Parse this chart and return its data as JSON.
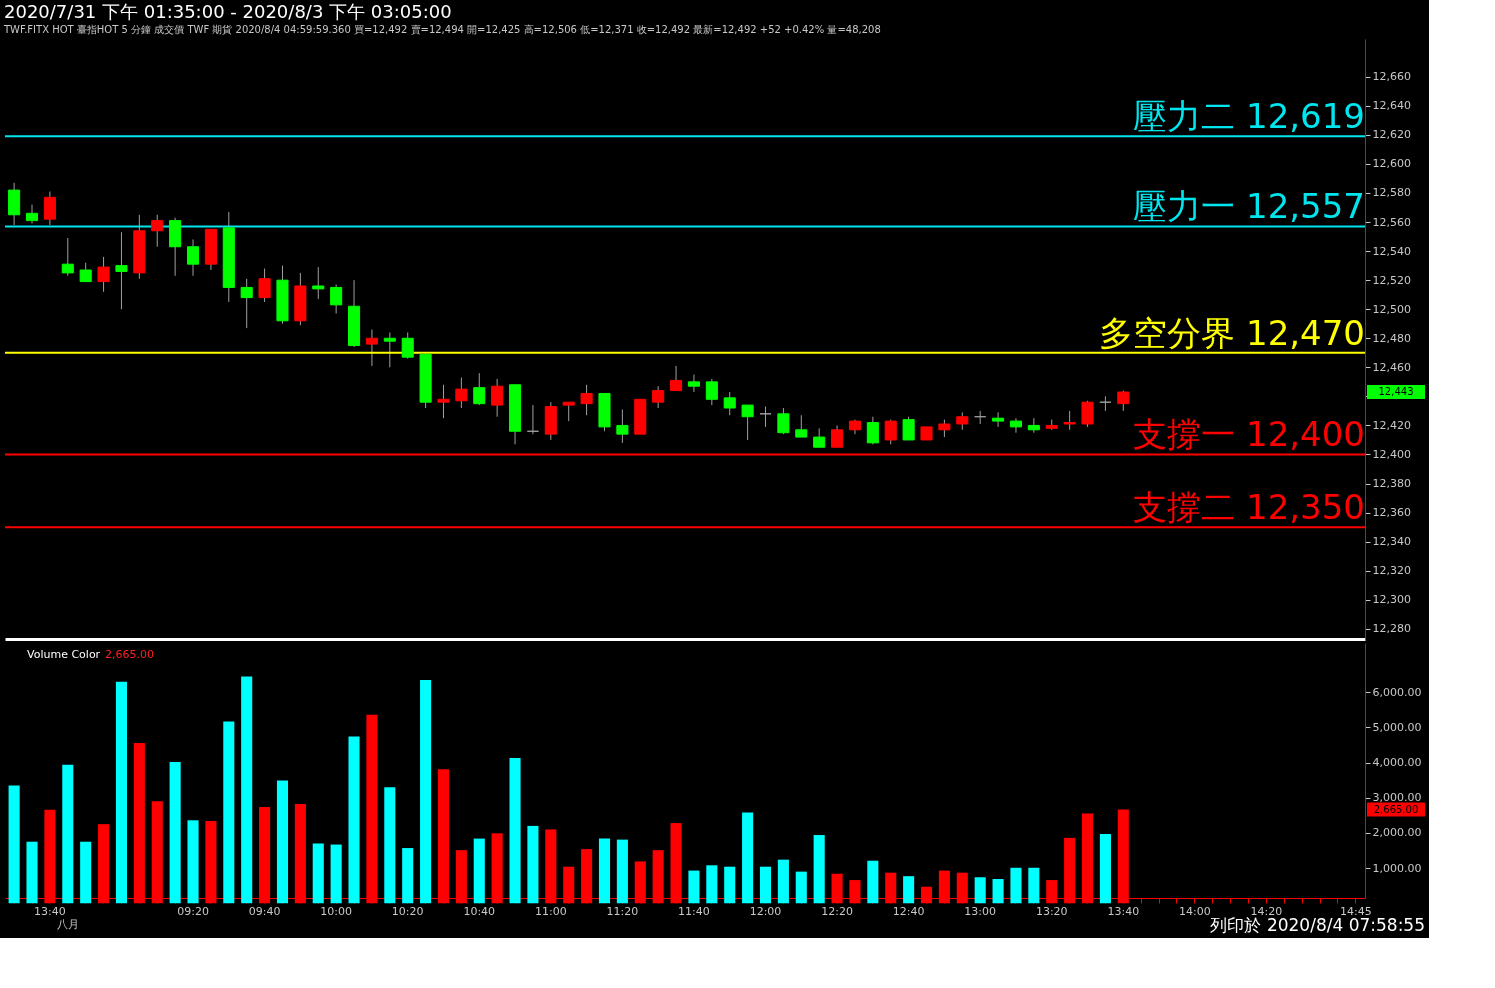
{
  "chart_data": [
    {
      "type": "candlestick",
      "title": "2020/7/31 下午 01:35:00 - 2020/8/3 下午 03:05:00",
      "subtitle": "TWF.FITX HOT  臺指HOT 5 分鐘  成交價 TWF 期貨  2020/8/4 04:59:59.360  買=12,492  賣=12,494  開=12,425  高=12,506  低=12,371  收=12,492  最新=12,492  +52  +0.42%  量=48,208",
      "categories": [
        null,
        null,
        null,
        null,
        null,
        null,
        null,
        null,
        null,
        null,
        null,
        null,
        null,
        null,
        null,
        null,
        null,
        null,
        null,
        null,
        null,
        null,
        null,
        null,
        null,
        null,
        null,
        null,
        null,
        null,
        null,
        null,
        null,
        null,
        null,
        null,
        null,
        null,
        null,
        null,
        null,
        null,
        null,
        null,
        null,
        null,
        null,
        null,
        null,
        null,
        null,
        null,
        null,
        null,
        null,
        null,
        null,
        null,
        null,
        null,
        null,
        null,
        null,
        null,
        null,
        null,
        null,
        null,
        null,
        null,
        null,
        null,
        null,
        null,
        null,
        null
      ],
      "ohlc": [
        [
          12582,
          12587,
          12558,
          12565
        ],
        [
          12566,
          12572,
          12559,
          12561
        ],
        [
          12562,
          12581,
          12558,
          12577
        ],
        [
          12531,
          12549,
          12523,
          12525
        ],
        [
          12527,
          12532,
          12519,
          12519
        ],
        [
          12519,
          12536,
          12512,
          12529
        ],
        [
          12530,
          12553,
          12500,
          12526
        ],
        [
          12525,
          12565,
          12521,
          12554
        ],
        [
          12554,
          12565,
          12543,
          12561
        ],
        [
          12561,
          12563,
          12523,
          12543
        ],
        [
          12543,
          12548,
          12523,
          12531
        ],
        [
          12531,
          12555,
          12527,
          12555
        ],
        [
          12556,
          12567,
          12505,
          12515
        ],
        [
          12515,
          12521,
          12487,
          12508
        ],
        [
          12508,
          12528,
          12505,
          12521
        ],
        [
          12520,
          12530,
          12490,
          12492
        ],
        [
          12492,
          12525,
          12489,
          12516
        ],
        [
          12516,
          12529,
          12507,
          12514
        ],
        [
          12515,
          12517,
          12497,
          12503
        ],
        [
          12502,
          12520,
          12474,
          12475
        ],
        [
          12476,
          12486,
          12461,
          12480
        ],
        [
          12480,
          12484,
          12460,
          12478
        ],
        [
          12480,
          12484,
          12466,
          12467
        ],
        [
          12469,
          12470,
          12432,
          12436
        ],
        [
          12436,
          12448,
          12425,
          12438
        ],
        [
          12437,
          12453,
          12432,
          12445
        ],
        [
          12446,
          12456,
          12434,
          12435
        ],
        [
          12434,
          12452,
          12426,
          12447
        ],
        [
          12448,
          12448,
          12407,
          12416
        ],
        [
          12416,
          12434,
          12414,
          12416
        ],
        [
          12414,
          12436,
          12410,
          12433
        ],
        [
          12434,
          12436,
          12423,
          12436
        ],
        [
          12435,
          12448,
          12427,
          12442
        ],
        [
          12442,
          12442,
          12416,
          12419
        ],
        [
          12420,
          12431,
          12408,
          12414
        ],
        [
          12414,
          12438,
          12414,
          12438
        ],
        [
          12436,
          12447,
          12432,
          12444
        ],
        [
          12444,
          12461,
          12444,
          12451
        ],
        [
          12450,
          12455,
          12443,
          12447
        ],
        [
          12450,
          12452,
          12434,
          12438
        ],
        [
          12439,
          12443,
          12427,
          12432
        ],
        [
          12434,
          12434,
          12410,
          12426
        ],
        [
          12428,
          12433,
          12419,
          12428
        ],
        [
          12428,
          12432,
          12414,
          12415
        ],
        [
          12417,
          12427,
          12412,
          12412
        ],
        [
          12412,
          12418,
          12405,
          12405
        ],
        [
          12405,
          12420,
          12405,
          12417
        ],
        [
          12417,
          12424,
          12414,
          12423
        ],
        [
          12422,
          12426,
          12407,
          12408
        ],
        [
          12410,
          12424,
          12407,
          12423
        ],
        [
          12424,
          12426,
          12410,
          12410
        ],
        [
          12410,
          12419,
          12410,
          12419
        ],
        [
          12417,
          12424,
          12412,
          12421
        ],
        [
          12421,
          12429,
          12417,
          12426
        ],
        [
          12426,
          12430,
          12421,
          12426
        ],
        [
          12425,
          12429,
          12419,
          12423
        ],
        [
          12423,
          12425,
          12415,
          12419
        ],
        [
          12420,
          12425,
          12415,
          12417
        ],
        [
          12418,
          12424,
          12417,
          12420
        ],
        [
          12421,
          12430,
          12417,
          12422
        ],
        [
          12421,
          12437,
          12419,
          12436
        ],
        [
          12436,
          12440,
          12430,
          12436
        ],
        [
          12435,
          12444,
          12430,
          12443
        ],
        null,
        null,
        null,
        null,
        null,
        null,
        null,
        null,
        null,
        null,
        null,
        null,
        null
      ],
      "colors": [
        "#00ff00",
        "#00ff00",
        "#ff0000",
        "#00ff00",
        "#00ff00",
        "#ff0000",
        "#00ff00",
        "#ff0000",
        "#ff0000",
        "#00ff00",
        "#00ff00",
        "#ff0000",
        "#00ff00",
        "#00ff00",
        "#ff0000",
        "#00ff00",
        "#ff0000",
        "#00ff00",
        "#00ff00",
        "#00ff00",
        "#ff0000",
        "#00ff00",
        "#00ff00",
        "#00ff00",
        "#ff0000",
        "#ff0000",
        "#00ff00",
        "#ff0000",
        "#00ff00",
        "#a0a0a0",
        "#ff0000",
        "#ff0000",
        "#ff0000",
        "#00ff00",
        "#00ff00",
        "#ff0000",
        "#ff0000",
        "#ff0000",
        "#00ff00",
        "#00ff00",
        "#00ff00",
        "#00ff00",
        "#a0a0a0",
        "#00ff00",
        "#00ff00",
        "#00ff00",
        "#ff0000",
        "#ff0000",
        "#00ff00",
        "#ff0000",
        "#00ff00",
        "#ff0000",
        "#ff0000",
        "#ff0000",
        "#a0a0a0",
        "#00ff00",
        "#00ff00",
        "#00ff00",
        "#ff0000",
        "#ff0000",
        "#ff0000",
        "#a0a0a0",
        "#ff0000",
        null,
        null,
        null,
        null,
        null,
        null,
        null,
        null,
        null,
        null,
        null,
        null,
        null
      ],
      "ylim": [
        12273,
        12686
      ],
      "yticks": [
        {
          "value": 12280,
          "label": "12,280"
        },
        {
          "value": 12300,
          "label": "12,300"
        },
        {
          "value": 12320,
          "label": "12,320"
        },
        {
          "value": 12340,
          "label": "12,340"
        },
        {
          "value": 12360,
          "label": "12,360"
        },
        {
          "value": 12380,
          "label": "12,380"
        },
        {
          "value": 12400,
          "label": "12,400"
        },
        {
          "value": 12420,
          "label": "12,420"
        },
        {
          "value": 12440,
          "label": null
        },
        {
          "value": 12460,
          "label": "12,460"
        },
        {
          "value": 12480,
          "label": "12,480"
        },
        {
          "value": 12500,
          "label": "12,500"
        },
        {
          "value": 12520,
          "label": "12,520"
        },
        {
          "value": 12540,
          "label": "12,540"
        },
        {
          "value": 12560,
          "label": "12,560"
        },
        {
          "value": 12580,
          "label": "12,580"
        },
        {
          "value": 12600,
          "label": "12,600"
        },
        {
          "value": 12620,
          "label": "12,620"
        },
        {
          "value": 12640,
          "label": "12,640"
        },
        {
          "value": 12660,
          "label": "12,660"
        }
      ],
      "ref_lines": [
        {
          "axis": "y",
          "value": 12619,
          "label": "壓力二 12,619",
          "color": "#00e5ee"
        },
        {
          "axis": "y",
          "value": 12557,
          "label": "壓力一 12,557",
          "color": "#00e5ee"
        },
        {
          "axis": "y",
          "value": 12470,
          "label": "多空分界 12,470",
          "color": "#ffff00"
        },
        {
          "axis": "y",
          "value": 12400,
          "label": "支撐一 12,400",
          "color": "#ff0000"
        },
        {
          "axis": "y",
          "value": 12350,
          "label": "支撐二 12,350",
          "color": "#ff0000"
        }
      ],
      "annotations": [
        "12,443"
      ],
      "tick_labels": "y",
      "grid": false
    },
    {
      "type": "bar",
      "categories": [
        null,
        null,
        "13:40",
        "八月",
        null,
        null,
        null,
        null,
        null,
        null,
        "09:20",
        null,
        null,
        null,
        "09:40",
        null,
        null,
        null,
        "10:00",
        null,
        null,
        null,
        "10:20",
        null,
        null,
        null,
        "10:40",
        null,
        null,
        null,
        "11:00",
        null,
        null,
        null,
        "11:20",
        null,
        null,
        null,
        "11:40",
        null,
        null,
        null,
        "12:00",
        null,
        null,
        null,
        "12:20",
        null,
        null,
        null,
        "12:40",
        null,
        null,
        null,
        "13:00",
        null,
        null,
        null,
        "13:20",
        null,
        null,
        null,
        "13:40",
        null,
        null,
        null,
        "14:00",
        null,
        null,
        null,
        "14:20",
        null,
        null,
        null,
        null,
        "14:45"
      ],
      "values": [
        3350,
        1750,
        2660,
        3940,
        1750,
        2250,
        6300,
        4560,
        2900,
        4020,
        2360,
        2340,
        5170,
        6450,
        2740,
        3490,
        2820,
        1700,
        1670,
        4740,
        5360,
        3300,
        1570,
        6350,
        3810,
        1510,
        1840,
        1990,
        4130,
        2200,
        2100,
        1040,
        1540,
        1840,
        1810,
        1190,
        1510,
        2280,
        930,
        1080,
        1040,
        2580,
        1040,
        1240,
        900,
        1940,
        840,
        660,
        1210,
        870,
        770,
        470,
        930,
        870,
        740,
        690,
        1010,
        1010,
        660,
        1860,
        2550,
        1970,
        2665,
        null,
        null,
        null,
        null,
        null,
        null,
        null,
        null,
        null,
        null,
        null,
        null,
        null
      ],
      "colors": [
        "#00ffff",
        "#00ffff",
        "#ff0000",
        "#00ffff",
        "#00ffff",
        "#ff0000",
        "#00ffff",
        "#ff0000",
        "#ff0000",
        "#00ffff",
        "#00ffff",
        "#ff0000",
        "#00ffff",
        "#00ffff",
        "#ff0000",
        "#00ffff",
        "#ff0000",
        "#00ffff",
        "#00ffff",
        "#00ffff",
        "#ff0000",
        "#00ffff",
        "#00ffff",
        "#00ffff",
        "#ff0000",
        "#ff0000",
        "#00ffff",
        "#ff0000",
        "#00ffff",
        "#00ffff",
        "#ff0000",
        "#ff0000",
        "#ff0000",
        "#00ffff",
        "#00ffff",
        "#ff0000",
        "#ff0000",
        "#ff0000",
        "#00ffff",
        "#00ffff",
        "#00ffff",
        "#00ffff",
        "#00ffff",
        "#00ffff",
        "#00ffff",
        "#00ffff",
        "#ff0000",
        "#ff0000",
        "#00ffff",
        "#ff0000",
        "#00ffff",
        "#ff0000",
        "#ff0000",
        "#ff0000",
        "#00ffff",
        "#00ffff",
        "#00ffff",
        "#00ffff",
        "#ff0000",
        "#ff0000",
        "#ff0000",
        "#00ffff",
        "#ff0000",
        null,
        null,
        null,
        null,
        null,
        null,
        null,
        null,
        null,
        null,
        null,
        null,
        null
      ],
      "ylim": [
        150,
        7400
      ],
      "yticks": [
        {
          "value": 1000,
          "label": "1,000.00"
        },
        {
          "value": 2000,
          "label": "2,000.00"
        },
        {
          "value": 3000,
          "label": "3,000.00"
        },
        {
          "value": 4000,
          "label": "4,000.00"
        },
        {
          "value": 5000,
          "label": "5,000.00"
        },
        {
          "value": 6000,
          "label": "6,000.00"
        }
      ],
      "annotations": [
        "Volume Color",
        "2,665.00",
        "2,665.00",
        "列印於 2020/8/4 07:58:55"
      ],
      "grid": false
    }
  ]
}
